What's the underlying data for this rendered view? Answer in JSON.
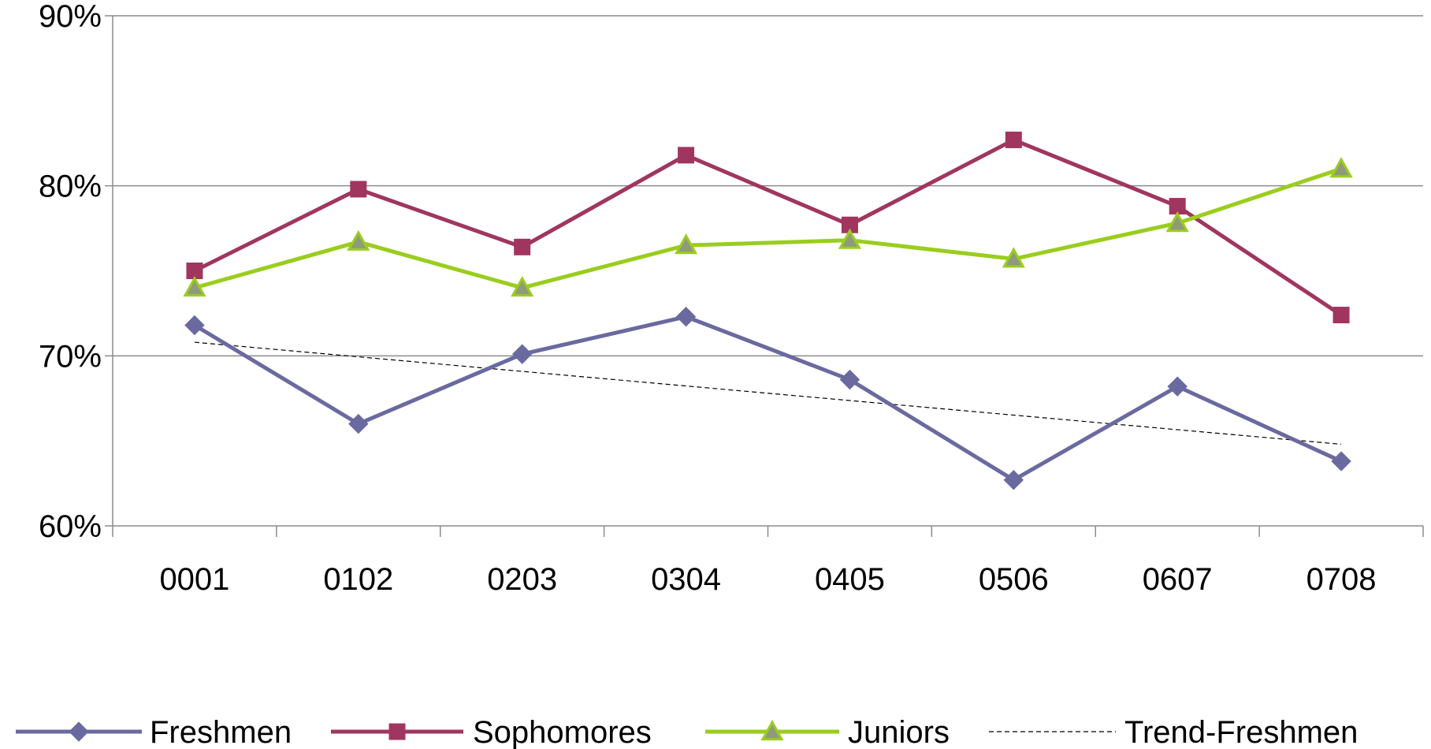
{
  "chart_data": {
    "type": "line",
    "categories": [
      "0001",
      "0102",
      "0203",
      "0304",
      "0405",
      "0506",
      "0607",
      "0708"
    ],
    "ylim": [
      0.6,
      0.9
    ],
    "yticks": [
      {
        "value": 0.6,
        "label": "60%"
      },
      {
        "value": 0.7,
        "label": "70%"
      },
      {
        "value": 0.8,
        "label": "80%"
      },
      {
        "value": 0.9,
        "label": "90%"
      }
    ],
    "grid": true,
    "legend_position": "bottom",
    "series": [
      {
        "name": "Freshmen",
        "color": "#6a6aa0",
        "marker": "diamond",
        "values": [
          0.718,
          0.66,
          0.701,
          0.723,
          0.686,
          0.627,
          0.682,
          0.638
        ]
      },
      {
        "name": "Sophomores",
        "color": "#a0365f",
        "marker": "square",
        "values": [
          0.75,
          0.798,
          0.764,
          0.818,
          0.777,
          0.827,
          0.788,
          0.724
        ]
      },
      {
        "name": "Juniors",
        "color": "#9acd1e",
        "marker": "triangle",
        "values": [
          0.74,
          0.767,
          0.74,
          0.765,
          0.768,
          0.757,
          0.778,
          0.81
        ]
      }
    ],
    "trendline": {
      "name": "Trend-Freshmen",
      "color": "#000000",
      "style": "dashed",
      "values": [
        0.708,
        0.648
      ]
    }
  }
}
